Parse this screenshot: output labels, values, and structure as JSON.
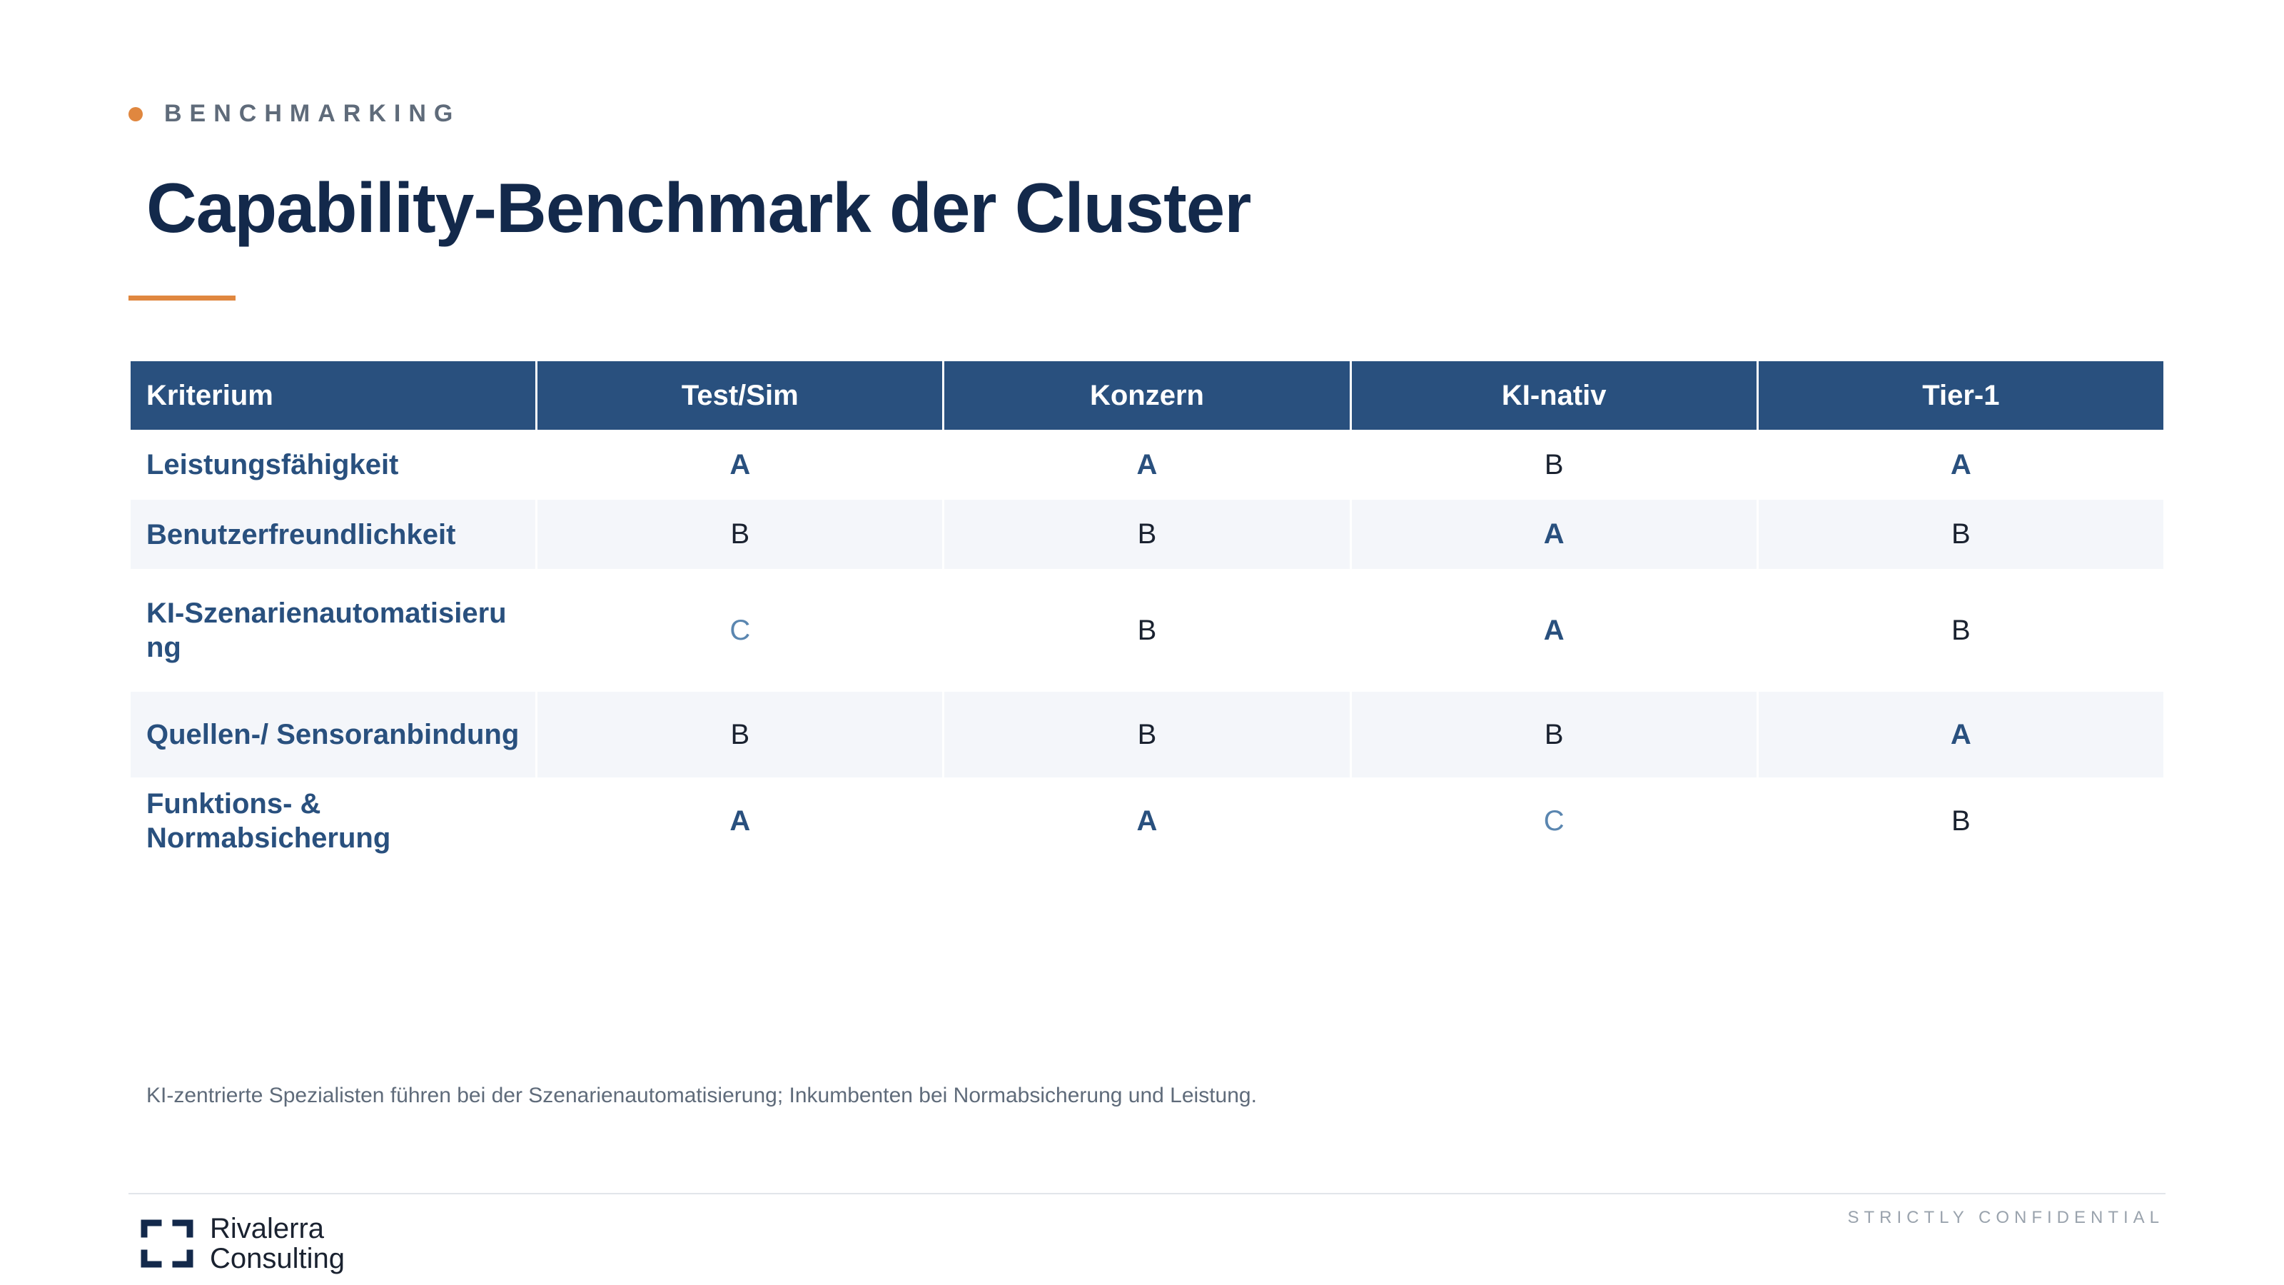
{
  "header": {
    "section_label": "BENCHMARKING",
    "title": "Capability-Benchmark der Cluster"
  },
  "table": {
    "columns": [
      "Kriterium",
      "Test/Sim",
      "Konzern",
      "KI-nativ",
      "Tier-1"
    ],
    "rows": [
      {
        "criterion": "Leistungsfähigkeit",
        "grades": [
          "A",
          "A",
          "B",
          "A"
        ]
      },
      {
        "criterion": "Benutzerfreundlichkeit",
        "grades": [
          "B",
          "B",
          "A",
          "B"
        ]
      },
      {
        "criterion": "KI-Szenarienautomatisierung",
        "grades": [
          "C",
          "B",
          "A",
          "B"
        ]
      },
      {
        "criterion": "Quellen-/ Sensoranbindung",
        "grades": [
          "B",
          "B",
          "B",
          "A"
        ]
      },
      {
        "criterion": "Funktions- & Normabsicherung",
        "grades": [
          "A",
          "A",
          "C",
          "B"
        ]
      }
    ]
  },
  "footnote": "KI-zentrierte Spezialisten führen bei der Szenarienautomatisierung; Inkumbenten bei Normabsicherung und Leistung.",
  "footer": {
    "logo_line1": "Rivalerra",
    "logo_line2": "Consulting",
    "confidential": "STRICTLY CONFIDENTIAL"
  },
  "colors": {
    "accent": "#e0873f",
    "navy": "#13294b",
    "header_blue": "#29507e",
    "grade_c": "#5a86b0"
  }
}
